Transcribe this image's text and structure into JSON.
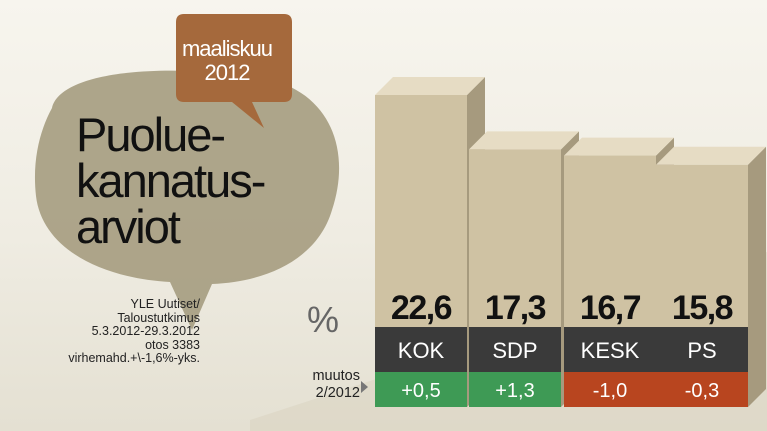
{
  "title_lines": [
    "Puolue-",
    "kannatus-",
    "arviot"
  ],
  "month_lines": [
    "maaliskuu",
    "2012"
  ],
  "source_lines": [
    "YLE Uutiset/",
    "Taloustutkimus",
    "5.3.2012-29.3.2012",
    "otos 3383",
    "virhemahd.+\\-1,6%-yks."
  ],
  "unit_symbol": "%",
  "change_label_lines": [
    "muutos",
    "2/2012"
  ],
  "colors": {
    "bar_face": "#cfc2a3",
    "bar_side": "#a69a7e",
    "bar_top": "#e6dcc4",
    "label_band": "#3a3a3a",
    "positive": "#3e9a55",
    "negative": "#b8451f",
    "bubble": "#a59c80",
    "month_bubble": "#a5693c"
  },
  "chart_data": {
    "type": "bar",
    "categories": [
      "KOK",
      "SDP",
      "KESK",
      "PS"
    ],
    "values": [
      22.6,
      17.3,
      16.7,
      15.8
    ],
    "value_labels": [
      "22,6",
      "17,3",
      "16,7",
      "15,8"
    ],
    "changes": [
      0.5,
      1.3,
      -1.0,
      -0.3
    ],
    "change_labels": [
      "+0,5",
      "+1,3",
      "-1,0",
      "-0,3"
    ],
    "ylabel": "%"
  }
}
